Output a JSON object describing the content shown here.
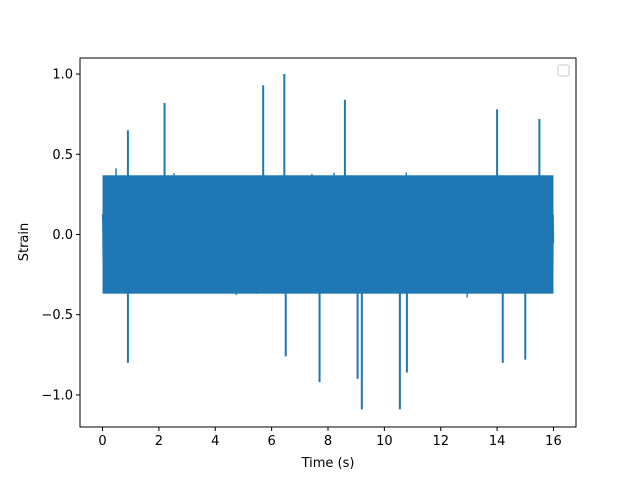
{
  "chart_data": {
    "type": "line",
    "title": "",
    "xlabel": "Time (s)",
    "ylabel": "Strain",
    "xlim": [
      -0.8,
      16.8
    ],
    "ylim": [
      -1.2,
      1.1
    ],
    "xticks": [
      0,
      2,
      4,
      6,
      8,
      10,
      12,
      14,
      16
    ],
    "xtick_labels": [
      "0",
      "2",
      "4",
      "6",
      "8",
      "10",
      "12",
      "14",
      "16"
    ],
    "yticks": [
      -1.0,
      -0.5,
      0.0,
      0.5,
      1.0
    ],
    "ytick_labels": [
      "−1.0",
      "−0.5",
      "0.0",
      "0.5",
      "1.0"
    ],
    "grid": false,
    "legend": {
      "placement": "upper right",
      "entries": []
    },
    "series": [
      {
        "color": "#1f77b4",
        "x_range": [
          0,
          16
        ],
        "typical_envelope": [
          -0.45,
          0.45
        ],
        "peaks": [
          {
            "x": 5.7,
            "y": 0.93
          },
          {
            "x": 6.45,
            "y": 1.0
          },
          {
            "x": 2.2,
            "y": 0.82
          },
          {
            "x": 8.6,
            "y": 0.84
          },
          {
            "x": 14.0,
            "y": 0.78
          },
          {
            "x": 15.5,
            "y": 0.72
          },
          {
            "x": 0.9,
            "y": 0.65
          },
          {
            "x": 9.2,
            "y": -1.09
          },
          {
            "x": 10.55,
            "y": -1.09
          },
          {
            "x": 7.7,
            "y": -0.92
          },
          {
            "x": 9.05,
            "y": -0.9
          },
          {
            "x": 10.8,
            "y": -0.86
          },
          {
            "x": 0.9,
            "y": -0.8
          },
          {
            "x": 6.5,
            "y": -0.76
          },
          {
            "x": 14.2,
            "y": -0.8
          },
          {
            "x": 15.0,
            "y": -0.78
          }
        ]
      }
    ]
  }
}
